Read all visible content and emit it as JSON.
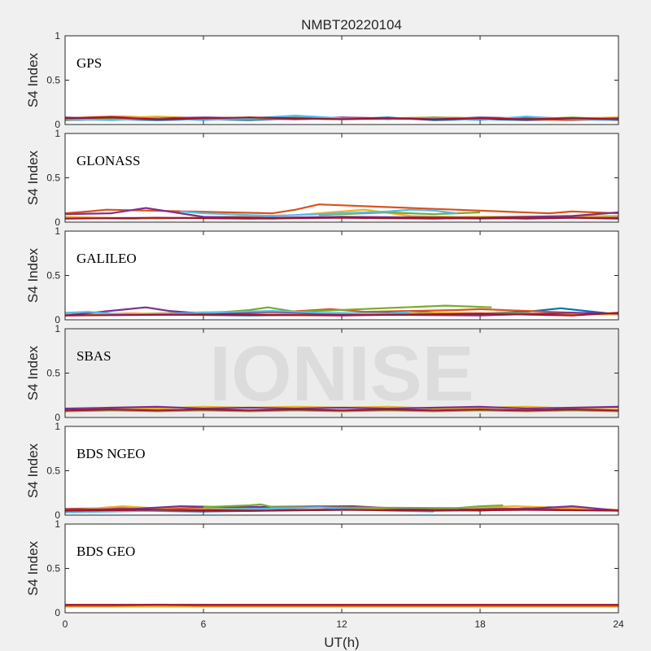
{
  "chart_data": {
    "type": "line",
    "title": "NMBT20220104",
    "xlabel": "UT(h)",
    "ylabel": "S4 Index",
    "xlim": [
      0,
      24
    ],
    "ylim": [
      0,
      1
    ],
    "xticks": [
      "0",
      "6",
      "12",
      "18",
      "24"
    ],
    "yticks": [
      "0",
      "0.5",
      "1"
    ],
    "grid": false,
    "watermark": "IONISE",
    "colors": [
      "#0072BD",
      "#D95319",
      "#EDB120",
      "#7E2F8E",
      "#77AC30",
      "#4DBEEE",
      "#A2142F"
    ],
    "panels": [
      {
        "label": "GPS",
        "series": [
          {
            "color": "#0072BD",
            "x": [
              0,
              2,
              4,
              6,
              8,
              10,
              12,
              14,
              16,
              18,
              20,
              22,
              24
            ],
            "y": [
              0.05,
              0.06,
              0.05,
              0.06,
              0.05,
              0.07,
              0.06,
              0.08,
              0.05,
              0.06,
              0.05,
              0.06,
              0.05
            ]
          },
          {
            "color": "#D95319",
            "x": [
              0,
              2,
              4,
              6,
              8,
              10,
              12,
              14,
              16,
              18,
              20,
              22,
              24
            ],
            "y": [
              0.07,
              0.09,
              0.08,
              0.06,
              0.08,
              0.06,
              0.07,
              0.06,
              0.08,
              0.07,
              0.06,
              0.05,
              0.06
            ]
          },
          {
            "color": "#EDB120",
            "x": [
              0,
              2,
              4,
              6,
              8,
              10,
              12,
              14,
              16,
              18,
              20,
              22,
              24
            ],
            "y": [
              0.06,
              0.07,
              0.09,
              0.07,
              0.06,
              0.08,
              0.07,
              0.06,
              0.07,
              0.06,
              0.08,
              0.07,
              0.08
            ]
          },
          {
            "color": "#7E2F8E",
            "x": [
              0,
              2,
              4,
              6,
              8,
              10,
              12,
              14,
              16,
              18,
              20,
              22,
              24
            ],
            "y": [
              0.08,
              0.06,
              0.07,
              0.08,
              0.07,
              0.06,
              0.08,
              0.07,
              0.06,
              0.08,
              0.07,
              0.06,
              0.07
            ]
          },
          {
            "color": "#77AC30",
            "x": [
              0,
              2,
              4,
              6,
              8,
              10,
              12,
              14,
              16,
              18,
              20,
              22,
              24
            ],
            "y": [
              0.05,
              0.07,
              0.06,
              0.07,
              0.06,
              0.08,
              0.06,
              0.07,
              0.08,
              0.07,
              0.06,
              0.08,
              0.06
            ]
          },
          {
            "color": "#4DBEEE",
            "x": [
              0,
              2,
              4,
              6,
              8,
              10,
              12,
              14,
              16,
              18,
              20,
              22,
              24
            ],
            "y": [
              0.06,
              0.05,
              0.07,
              0.05,
              0.07,
              0.1,
              0.07,
              0.06,
              0.07,
              0.05,
              0.09,
              0.06,
              0.05
            ]
          },
          {
            "color": "#A2142F",
            "x": [
              0,
              2,
              4,
              6,
              8,
              10,
              12,
              14,
              16,
              18,
              20,
              22,
              24
            ],
            "y": [
              0.07,
              0.08,
              0.06,
              0.07,
              0.08,
              0.07,
              0.06,
              0.07,
              0.06,
              0.07,
              0.06,
              0.07,
              0.06
            ]
          }
        ]
      },
      {
        "label": "GLONASS",
        "series": [
          {
            "color": "#0072BD",
            "x": [
              0,
              3,
              6,
              9,
              12,
              15,
              18,
              21,
              24
            ],
            "y": [
              0.05,
              0.04,
              0.05,
              0.04,
              0.06,
              0.05,
              0.04,
              0.05,
              0.06
            ]
          },
          {
            "color": "#D95319",
            "x": [
              0,
              1,
              1.8,
              9,
              10,
              11,
              21,
              22,
              24
            ],
            "y": [
              0.1,
              0.12,
              0.14,
              0.1,
              0.14,
              0.2,
              0.1,
              0.12,
              0.1
            ]
          },
          {
            "color": "#EDB120",
            "x": [
              0,
              2,
              4,
              10,
              12,
              13,
              15,
              17,
              24
            ],
            "y": [
              0.06,
              0.05,
              0.04,
              0.08,
              0.12,
              0.14,
              0.07,
              0.06,
              0.07
            ]
          },
          {
            "color": "#7E2F8E",
            "x": [
              0,
              2,
              3.5,
              6,
              9,
              12,
              18,
              22,
              24
            ],
            "y": [
              0.09,
              0.1,
              0.16,
              0.06,
              0.05,
              0.06,
              0.05,
              0.07,
              0.11
            ]
          },
          {
            "color": "#77AC30",
            "x": [
              11,
              12,
              13,
              14,
              15,
              16,
              17,
              18
            ],
            "y": [
              0.08,
              0.09,
              0.1,
              0.11,
              0.1,
              0.09,
              0.1,
              0.11
            ]
          },
          {
            "color": "#4DBEEE",
            "x": [
              5,
              6,
              7,
              8,
              9,
              14,
              15,
              16,
              17
            ],
            "y": [
              0.12,
              0.1,
              0.09,
              0.08,
              0.07,
              0.12,
              0.14,
              0.13,
              0.1
            ]
          },
          {
            "color": "#A2142F",
            "x": [
              0,
              4,
              8,
              12,
              16,
              18,
              20,
              22,
              24
            ],
            "y": [
              0.04,
              0.05,
              0.04,
              0.05,
              0.04,
              0.05,
              0.04,
              0.05,
              0.04
            ]
          }
        ]
      },
      {
        "label": "GALILEO",
        "series": [
          {
            "color": "#0072BD",
            "x": [
              0,
              4,
              8,
              12,
              15,
              16,
              18,
              20,
              21.5,
              24
            ],
            "y": [
              0.05,
              0.06,
              0.05,
              0.06,
              0.1,
              0.08,
              0.07,
              0.09,
              0.13,
              0.06
            ]
          },
          {
            "color": "#D95319",
            "x": [
              0,
              3,
              6,
              9,
              11.5,
              13,
              17,
              18,
              24
            ],
            "y": [
              0.06,
              0.07,
              0.06,
              0.08,
              0.12,
              0.09,
              0.11,
              0.12,
              0.06
            ]
          },
          {
            "color": "#EDB120",
            "x": [
              0,
              2,
              5,
              7,
              10,
              13,
              16,
              20,
              24
            ],
            "y": [
              0.07,
              0.06,
              0.08,
              0.09,
              0.07,
              0.06,
              0.08,
              0.07,
              0.06
            ]
          },
          {
            "color": "#7E2F8E",
            "x": [
              0,
              3.5,
              4.5,
              6,
              9,
              12,
              18,
              22,
              24
            ],
            "y": [
              0.05,
              0.14,
              0.1,
              0.07,
              0.09,
              0.06,
              0.05,
              0.08,
              0.07
            ]
          },
          {
            "color": "#77AC30",
            "x": [
              6,
              7,
              8,
              8.8,
              10,
              16.5,
              17.5,
              18.5
            ],
            "y": [
              0.07,
              0.09,
              0.11,
              0.14,
              0.09,
              0.16,
              0.15,
              0.14
            ]
          },
          {
            "color": "#4DBEEE",
            "x": [
              0,
              1,
              2,
              3,
              9,
              10,
              11,
              14,
              15
            ],
            "y": [
              0.08,
              0.09,
              0.07,
              0.06,
              0.1,
              0.09,
              0.08,
              0.07,
              0.09
            ]
          },
          {
            "color": "#A2142F",
            "x": [
              0,
              6,
              12,
              18,
              20,
              22,
              24
            ],
            "y": [
              0.05,
              0.06,
              0.05,
              0.07,
              0.06,
              0.05,
              0.08
            ]
          }
        ]
      },
      {
        "label": "SBAS",
        "series": [
          {
            "color": "#EDB120",
            "x": [
              0,
              2,
              4,
              6,
              8,
              10,
              12,
              14,
              16,
              18,
              20,
              22,
              24
            ],
            "y": [
              0.09,
              0.11,
              0.1,
              0.12,
              0.11,
              0.12,
              0.11,
              0.12,
              0.1,
              0.11,
              0.12,
              0.1,
              0.11
            ]
          },
          {
            "color": "#7E2F8E",
            "x": [
              0,
              2,
              4,
              6,
              8,
              10,
              12,
              14,
              16,
              18,
              20,
              22,
              24
            ],
            "y": [
              0.1,
              0.11,
              0.12,
              0.1,
              0.11,
              0.1,
              0.11,
              0.1,
              0.11,
              0.12,
              0.1,
              0.11,
              0.12
            ]
          },
          {
            "color": "#77AC30",
            "x": [
              0,
              2,
              4,
              6,
              8,
              10,
              12,
              14,
              16,
              18,
              20,
              22,
              24
            ],
            "y": [
              0.07,
              0.08,
              0.07,
              0.08,
              0.07,
              0.08,
              0.07,
              0.08,
              0.07,
              0.08,
              0.07,
              0.08,
              0.07
            ]
          },
          {
            "color": "#A2142F",
            "x": [
              0,
              2,
              4,
              6,
              8,
              10,
              12,
              14,
              16,
              18,
              20,
              22,
              24
            ],
            "y": [
              0.08,
              0.09,
              0.08,
              0.09,
              0.08,
              0.09,
              0.08,
              0.09,
              0.08,
              0.09,
              0.08,
              0.09,
              0.08
            ]
          }
        ]
      },
      {
        "label": "BDS NGEO",
        "series": [
          {
            "color": "#0072BD",
            "x": [
              0,
              3,
              6,
              9,
              12,
              15,
              18,
              21,
              24
            ],
            "y": [
              0.04,
              0.05,
              0.04,
              0.05,
              0.06,
              0.07,
              0.05,
              0.09,
              0.05
            ]
          },
          {
            "color": "#D95319",
            "x": [
              0,
              2,
              4,
              6,
              8,
              10,
              14,
              18,
              22,
              24
            ],
            "y": [
              0.07,
              0.08,
              0.07,
              0.08,
              0.09,
              0.06,
              0.07,
              0.08,
              0.06,
              0.05
            ]
          },
          {
            "color": "#EDB120",
            "x": [
              0,
              2.5,
              5,
              9,
              11,
              13,
              16,
              19.5,
              23,
              24
            ],
            "y": [
              0.05,
              0.1,
              0.06,
              0.09,
              0.1,
              0.08,
              0.07,
              0.1,
              0.07,
              0.06
            ]
          },
          {
            "color": "#7E2F8E",
            "x": [
              0,
              3,
              5,
              7,
              12.5,
              14,
              16,
              20,
              22,
              24
            ],
            "y": [
              0.06,
              0.07,
              0.1,
              0.09,
              0.1,
              0.08,
              0.06,
              0.07,
              0.1,
              0.05
            ]
          },
          {
            "color": "#77AC30",
            "x": [
              6,
              7,
              8,
              8.5,
              9,
              17,
              18,
              19
            ],
            "y": [
              0.09,
              0.1,
              0.11,
              0.12,
              0.09,
              0.08,
              0.1,
              0.11
            ]
          },
          {
            "color": "#4DBEEE",
            "x": [
              0,
              2,
              4,
              10,
              11,
              12,
              14,
              16
            ],
            "y": [
              0.03,
              0.04,
              0.05,
              0.08,
              0.09,
              0.07,
              0.05,
              0.04
            ]
          },
          {
            "color": "#A2142F",
            "x": [
              0,
              4,
              8,
              12,
              16,
              20,
              24
            ],
            "y": [
              0.05,
              0.06,
              0.05,
              0.06,
              0.05,
              0.06,
              0.05
            ]
          }
        ]
      },
      {
        "label": "BDS GEO",
        "series": [
          {
            "color": "#EDB120",
            "x": [
              0,
              2,
              4,
              6,
              8,
              10,
              12,
              14,
              16,
              18,
              20,
              22,
              24
            ],
            "y": [
              0.07,
              0.07,
              0.07,
              0.07,
              0.07,
              0.07,
              0.07,
              0.07,
              0.07,
              0.07,
              0.07,
              0.07,
              0.07
            ]
          },
          {
            "color": "#D95319",
            "x": [
              0,
              2,
              4,
              6,
              8,
              10,
              12,
              14,
              16,
              18,
              20,
              22,
              24
            ],
            "y": [
              0.08,
              0.08,
              0.09,
              0.08,
              0.08,
              0.08,
              0.08,
              0.08,
              0.08,
              0.08,
              0.08,
              0.08,
              0.08
            ]
          },
          {
            "color": "#A2142F",
            "x": [
              0,
              3,
              6,
              9,
              12,
              15,
              18,
              21,
              24
            ],
            "y": [
              0.09,
              0.09,
              0.09,
              0.09,
              0.09,
              0.09,
              0.09,
              0.09,
              0.09
            ]
          }
        ]
      }
    ]
  }
}
